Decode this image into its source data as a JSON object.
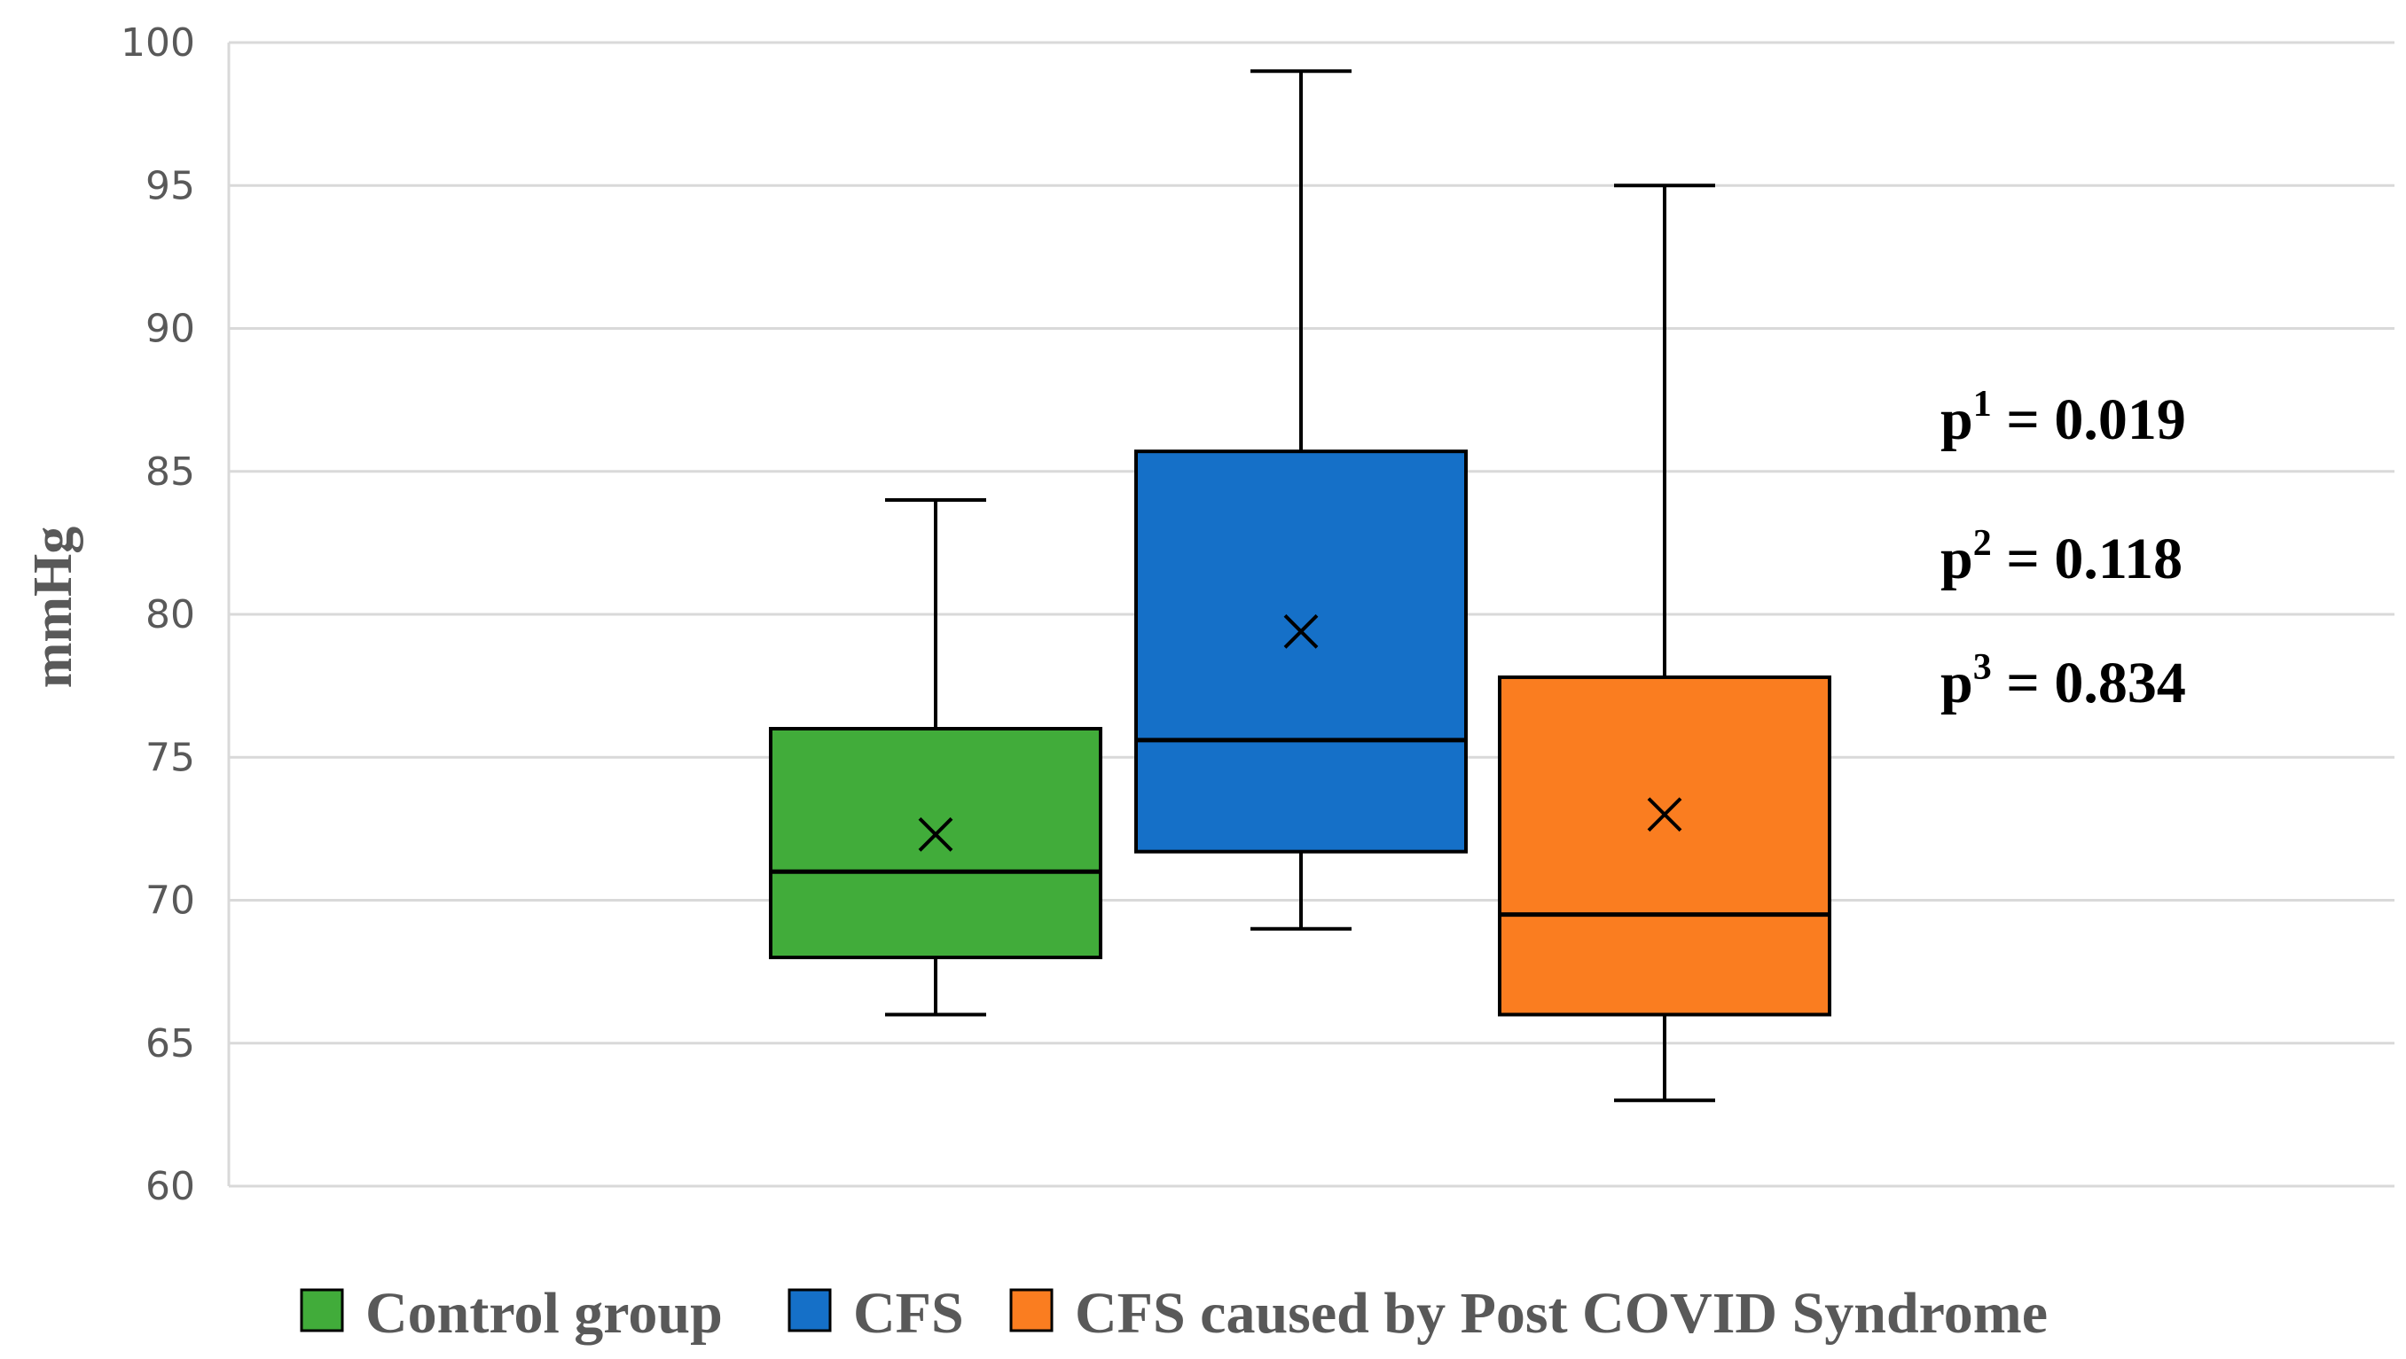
{
  "chart_data": {
    "type": "boxplot",
    "ylabel": "mmHg",
    "ylim": [
      60,
      100
    ],
    "yticks": [
      60,
      65,
      70,
      75,
      80,
      85,
      90,
      95,
      100
    ],
    "grid": true,
    "series": [
      {
        "name": "Control group",
        "color": "#41AC3A",
        "min": 66,
        "q1": 68,
        "median": 71,
        "q3": 76,
        "max": 84,
        "mean": 72.3
      },
      {
        "name": "CFS",
        "color": "#1570C8",
        "min": 69,
        "q1": 71.7,
        "median": 75.6,
        "q3": 85.7,
        "max": 99,
        "mean": 79.4
      },
      {
        "name": "CFS caused by Post COVID Syndrome",
        "color": "#FA7D20",
        "min": 63,
        "q1": 66,
        "median": 69.5,
        "q3": 77.8,
        "max": 95,
        "mean": 73
      }
    ],
    "annotations": [
      {
        "base": "p",
        "sup": "1",
        "text": " = 0.019"
      },
      {
        "base": "p",
        "sup": "2",
        "text": " = 0.118"
      },
      {
        "base": "p",
        "sup": "3",
        "text": " = 0.834"
      }
    ],
    "legend_position": "bottom"
  }
}
